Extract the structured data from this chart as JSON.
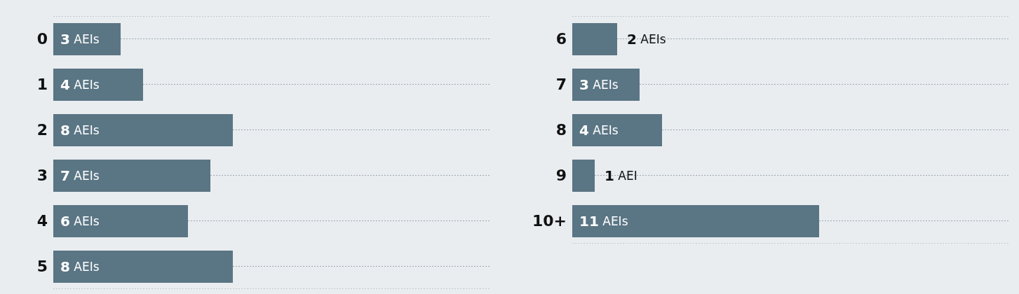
{
  "chart_data": [
    {
      "type": "bar",
      "orientation": "horizontal",
      "categories": [
        "0",
        "1",
        "2",
        "3",
        "4",
        "5"
      ],
      "values": [
        3,
        4,
        8,
        7,
        6,
        8
      ],
      "value_labels": [
        "3 AEIs",
        "4 AEIs",
        "8 AEIs",
        "7 AEIs",
        "6 AEIs",
        "8 AEIs"
      ],
      "color": "#5a7584",
      "xlim": [
        0,
        19.5
      ],
      "tick_labels": "y",
      "grid": "y",
      "legend": false
    },
    {
      "type": "bar",
      "orientation": "horizontal",
      "categories": [
        "6",
        "7",
        "8",
        "9",
        "10+"
      ],
      "values": [
        2,
        3,
        4,
        1,
        11
      ],
      "value_labels": [
        "2 AEIs",
        "3 AEIs",
        "4 AEIs",
        "1 AEI",
        "11 AEIs"
      ],
      "color": "#5a7584",
      "xlim": [
        0,
        19.5
      ],
      "tick_labels": "y",
      "grid": "y",
      "legend": false
    }
  ]
}
